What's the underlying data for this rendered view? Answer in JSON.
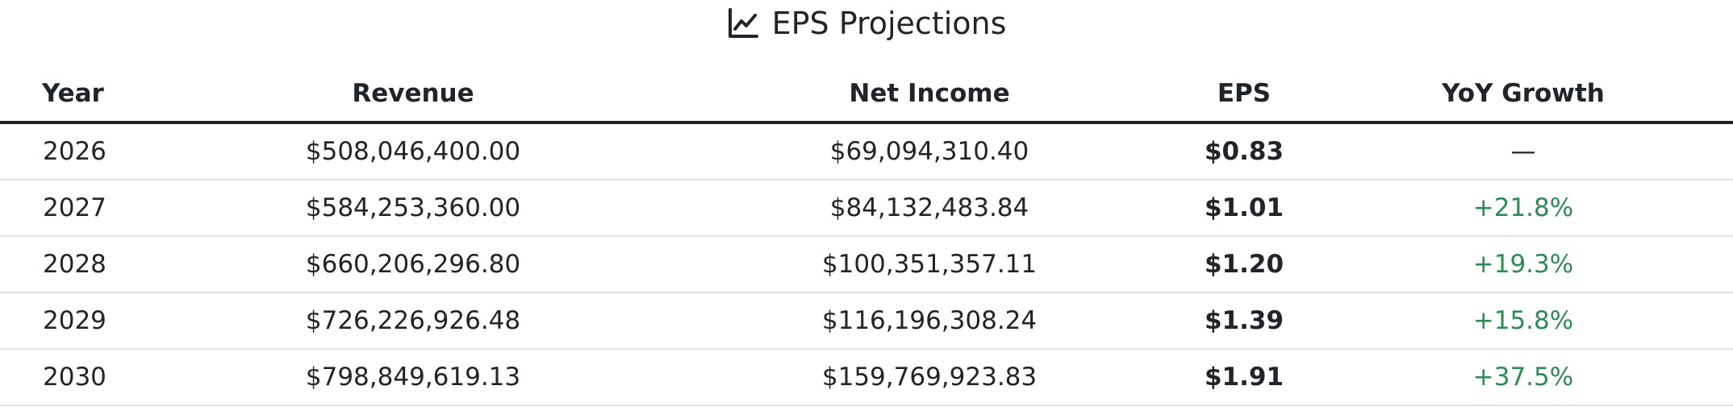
{
  "header": {
    "title": "EPS Projections",
    "icon": "line-chart-icon"
  },
  "table": {
    "columns": [
      "Year",
      "Revenue",
      "Net Income",
      "EPS",
      "YoY Growth"
    ],
    "rows": [
      {
        "year": "2026",
        "revenue": "$508,046,400.00",
        "net_income": "$69,094,310.40",
        "eps": "$0.83",
        "yoy": "—",
        "yoy_type": "neutral"
      },
      {
        "year": "2027",
        "revenue": "$584,253,360.00",
        "net_income": "$84,132,483.84",
        "eps": "$1.01",
        "yoy": "+21.8%",
        "yoy_type": "positive"
      },
      {
        "year": "2028",
        "revenue": "$660,206,296.80",
        "net_income": "$100,351,357.11",
        "eps": "$1.20",
        "yoy": "+19.3%",
        "yoy_type": "positive"
      },
      {
        "year": "2029",
        "revenue": "$726,226,926.48",
        "net_income": "$116,196,308.24",
        "eps": "$1.39",
        "yoy": "+15.8%",
        "yoy_type": "positive"
      },
      {
        "year": "2030",
        "revenue": "$798,849,619.13",
        "net_income": "$159,769,923.83",
        "eps": "$1.91",
        "yoy": "+37.5%",
        "yoy_type": "positive"
      }
    ]
  },
  "colors": {
    "text": "#212529",
    "positive": "#2e8b57",
    "row_border": "#dee2e6"
  }
}
